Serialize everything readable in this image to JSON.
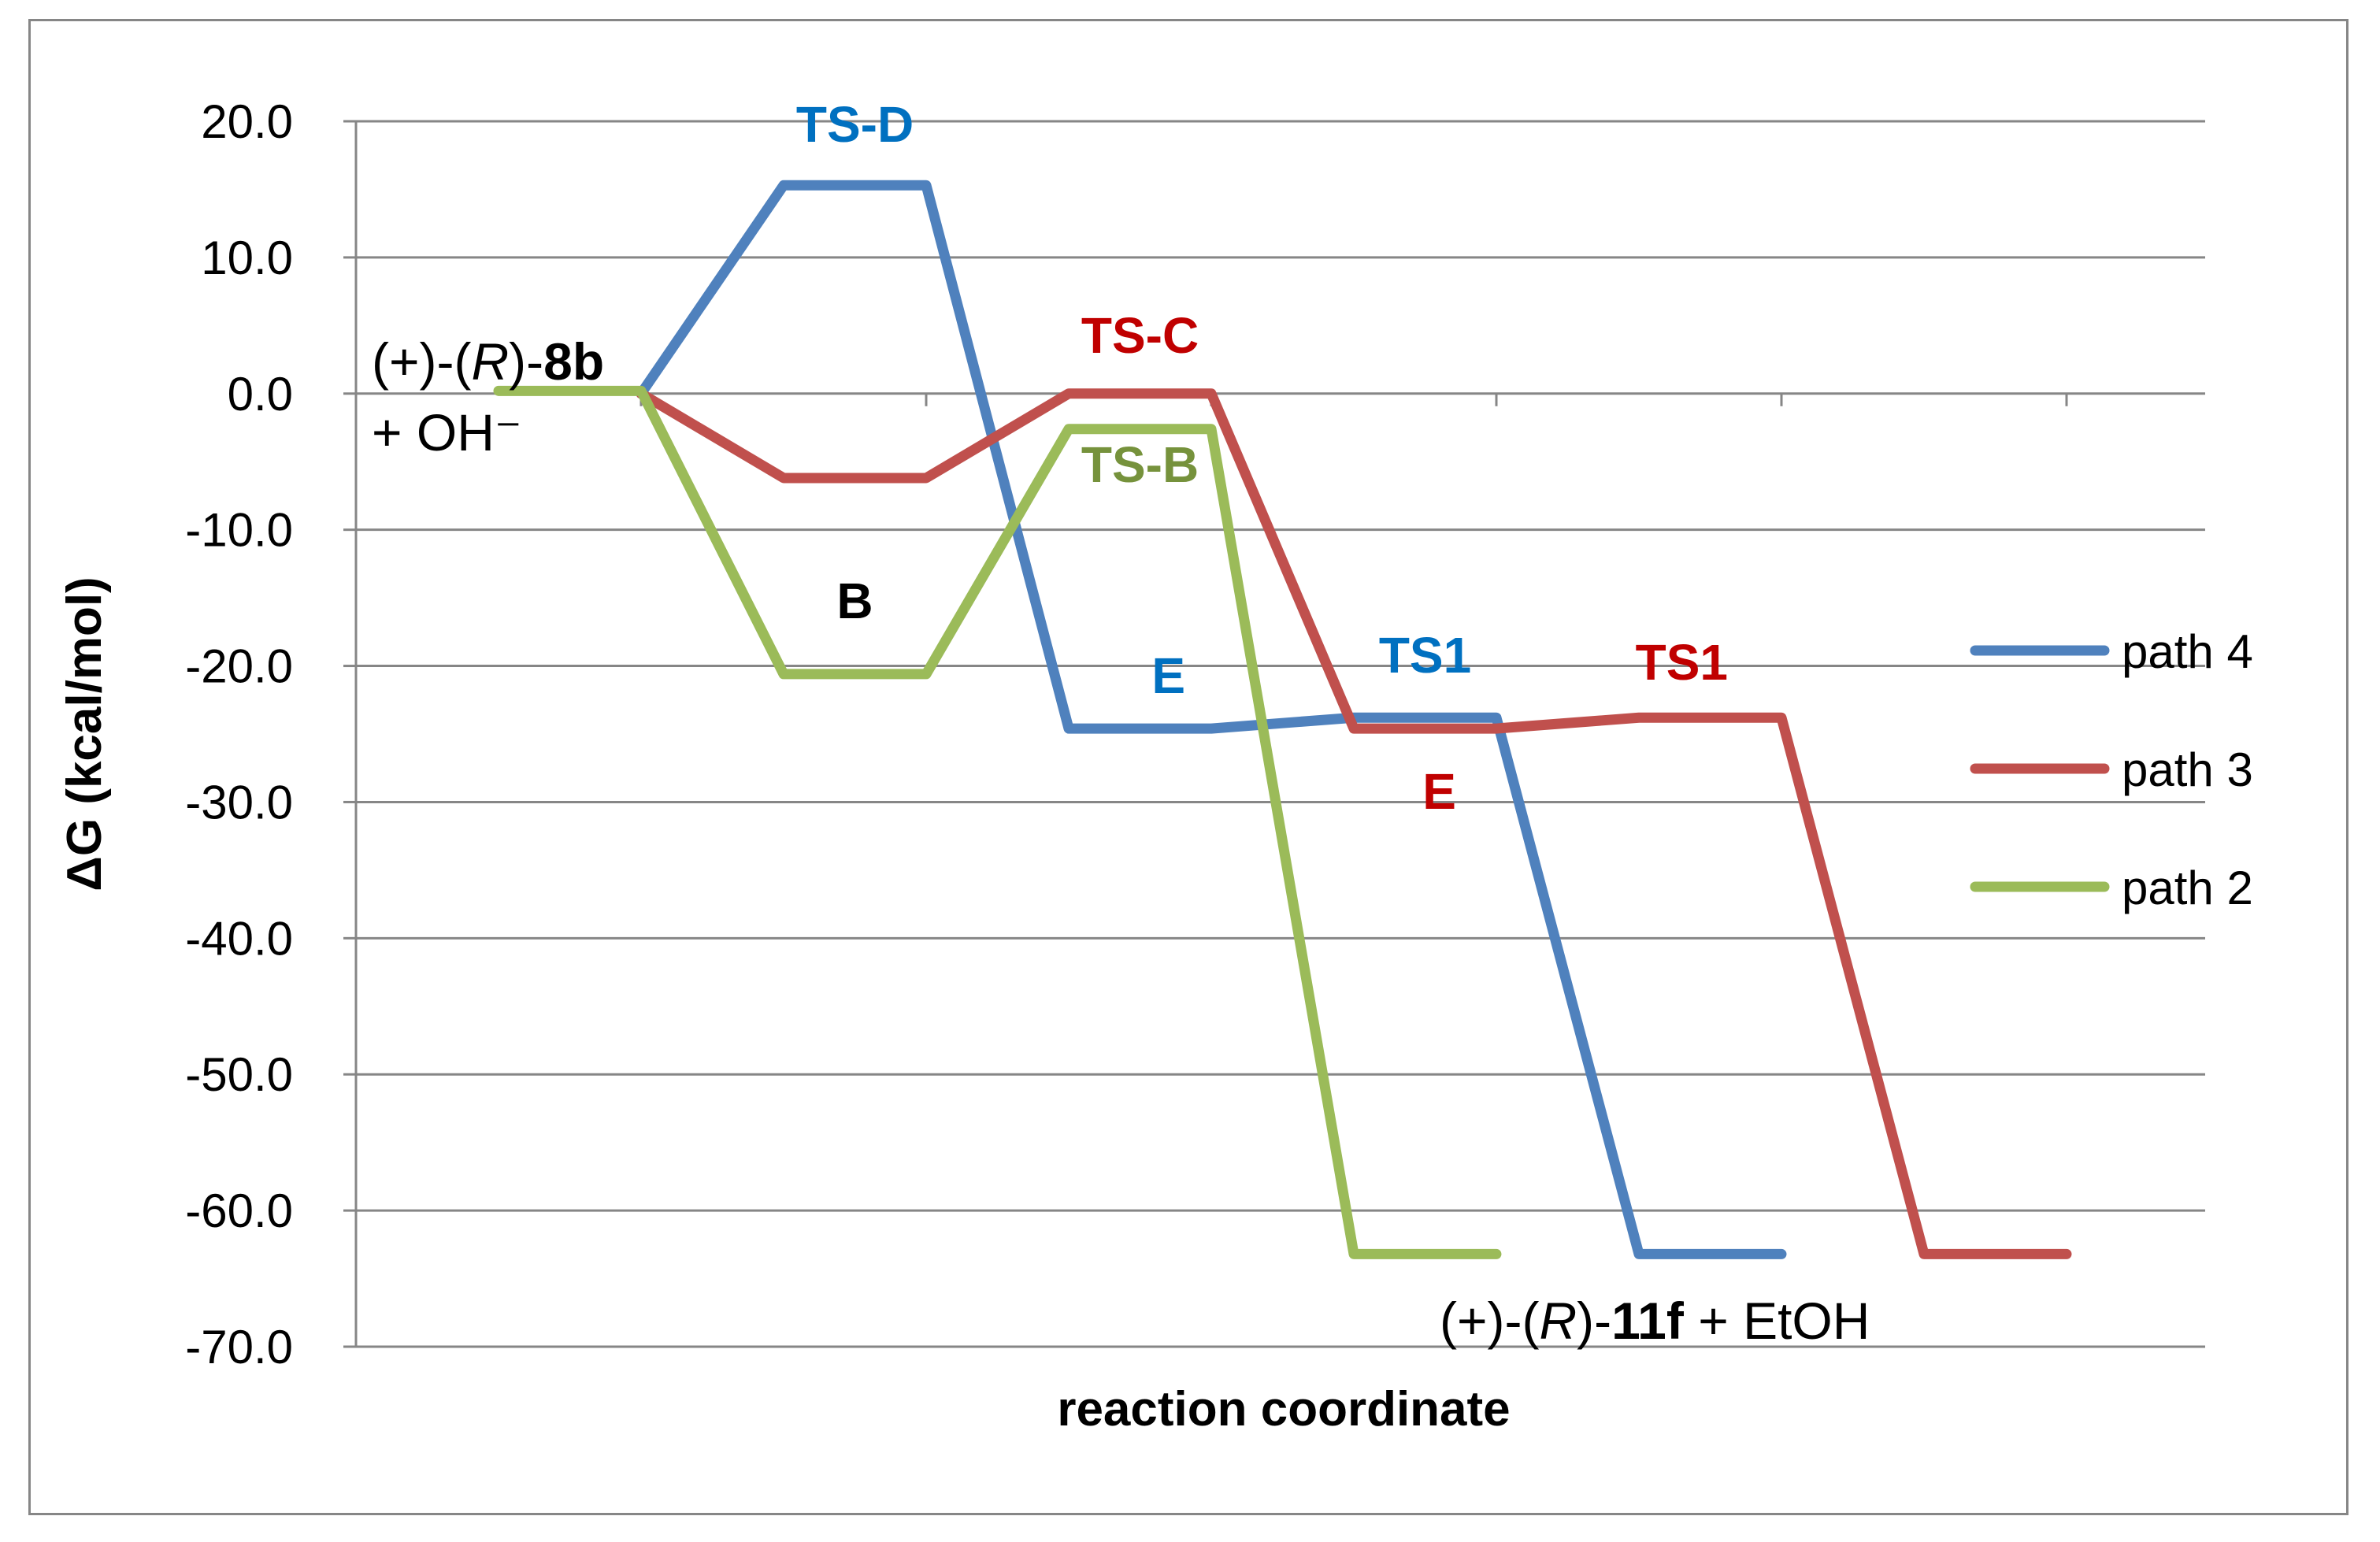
{
  "chart_data": {
    "type": "line",
    "xlabel": "reaction coordinate",
    "ylabel": "ΔG (kcal/mol)",
    "ylim": [
      -70,
      20
    ],
    "y_ticks": [
      "20.0",
      "10.0",
      "0.0",
      "-10.0",
      "-20.0",
      "-30.0",
      "-40.0",
      "-50.0",
      "-60.0",
      "-70.0"
    ],
    "y_tick_values": [
      20,
      10,
      0,
      -10,
      -20,
      -30,
      -40,
      -50,
      -60,
      -70
    ],
    "grid": "horizontal",
    "legend_position": "right",
    "series": [
      {
        "name": "path 4",
        "color": "#4F81BD",
        "points": [
          [
            1,
            0
          ],
          [
            1.5,
            15.3
          ],
          [
            2,
            15.3
          ],
          [
            2.5,
            -24.6
          ],
          [
            3,
            -24.6
          ],
          [
            3.5,
            -23.8
          ],
          [
            4,
            -23.8
          ],
          [
            4.5,
            -63.2
          ],
          [
            5,
            -63.2
          ]
        ]
      },
      {
        "name": "path 3",
        "color": "#C0504D",
        "points": [
          [
            1,
            0
          ],
          [
            1.5,
            -6.2
          ],
          [
            2,
            -6.2
          ],
          [
            2.5,
            0
          ],
          [
            3,
            0
          ],
          [
            3.5,
            -24.6
          ],
          [
            4,
            -24.6
          ],
          [
            4.5,
            -23.8
          ],
          [
            5,
            -23.8
          ],
          [
            5.5,
            -63.2
          ],
          [
            6,
            -63.2
          ]
        ]
      },
      {
        "name": "path 2",
        "color": "#9BBB59",
        "points": [
          [
            0.5,
            0.2
          ],
          [
            1,
            0.2
          ],
          [
            1.5,
            -20.6
          ],
          [
            2,
            -20.6
          ],
          [
            2.5,
            -2.6
          ],
          [
            3,
            -2.6
          ],
          [
            3.5,
            -63.2
          ],
          [
            4,
            -63.2
          ]
        ]
      }
    ],
    "annotations": [
      {
        "text": "TS-D",
        "color": "#0070C0",
        "x": 1.75,
        "y": 18.5
      },
      {
        "text": "TS-C",
        "color": "#C00000",
        "x": 2.75,
        "y": 3.0
      },
      {
        "text": "TS-B",
        "color": "#76923C",
        "x": 2.75,
        "y": -6.5
      },
      {
        "text": "B",
        "color": "#000000",
        "x": 1.75,
        "y": -16.5
      },
      {
        "text": "E",
        "color": "#0070C0",
        "x": 2.85,
        "y": -22.0
      },
      {
        "text": "E",
        "color": "#C00000",
        "x": 3.8,
        "y": -30.5
      },
      {
        "text": "TS1",
        "color": "#0070C0",
        "x": 3.75,
        "y": -20.5
      },
      {
        "text": "TS1",
        "color": "#C00000",
        "x": 4.65,
        "y": -21.0
      }
    ],
    "species": {
      "start_line1": [
        "(+)-(",
        "R",
        ")-",
        "8b"
      ],
      "start_line2": "+ OH⁻",
      "end_label": [
        "(+)-(",
        "R",
        ")-",
        "11f",
        " + EtOH"
      ]
    }
  }
}
